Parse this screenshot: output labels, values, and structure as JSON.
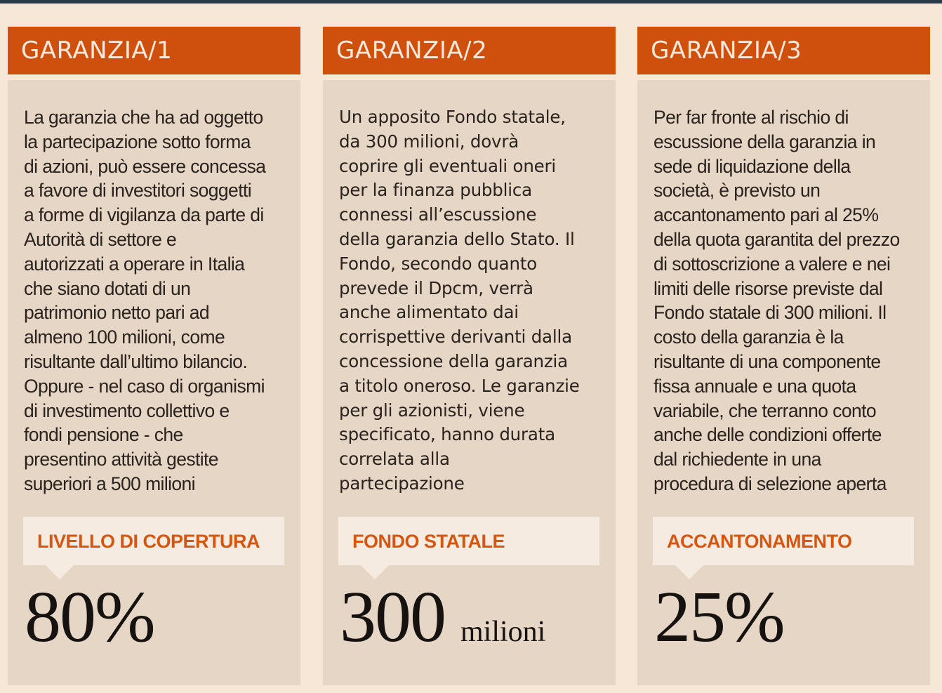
{
  "columns": [
    {
      "title": "GARANZIA/1",
      "body": "La garanzia che ha ad oggetto\nla partecipazione sotto forma\ndi azioni, può essere concessa\na favore di investitori soggetti\na forme di vigilanza da parte di\nAutorità di settore e\nautorizzati a operare in Italia\nche siano dotati di un\npatrimonio netto pari ad\nalmeno 100 milioni, come\nrisultante dall’ultimo bilancio.\nOppure - nel caso di organismi\ndi investimento collettivo e\nfondi pensione - che\npresentino attività gestite\nsuperiori a 500 milioni",
      "callout_label": "LIVELLO DI COPERTURA",
      "value": "80%",
      "unit": ""
    },
    {
      "title": "GARANZIA/2",
      "body": "Un apposito Fondo statale,\nda 300 milioni, dovrà\ncoprire gli eventuali oneri\nper la finanza pubblica\nconnessi all’escussione\ndella garanzia dello Stato. Il\nFondo, secondo quanto\nprevede il Dpcm, verrà\nanche alimentato dai\ncorrispettive derivanti dalla\nconcessione della garanzia\na titolo oneroso. Le garanzie\nper gli azionisti, viene\nspecificato, hanno durata\ncorrelata alla\npartecipazione",
      "callout_label": "FONDO STATALE",
      "value": "300",
      "unit": "milioni"
    },
    {
      "title": "GARANZIA/3",
      "body": "Per far fronte al rischio di\nescussione della garanzia in\nsede di liquidazione della\nsocietà, è previsto un\naccantonamento pari al 25%\ndella quota garantita del prezzo\ndi sottoscrizione a valere e nei\nlimiti delle risorse previste dal\nFondo statale di 300 milioni. Il\ncosto della garanzia è la\nrisultante di una componente\nfissa annuale e una quota\nvariabile, che terranno conto\nanche delle condizioni offerte\ndal richiedente in una\nprocedura di selezione aperta",
      "callout_label": "ACCANTONAMENTO",
      "value": "25%",
      "unit": ""
    }
  ],
  "colors": {
    "header": "#cf4f0d",
    "panel": "#e6d6c5",
    "background": "#f6e7d7",
    "callout_text": "#d4560f"
  }
}
